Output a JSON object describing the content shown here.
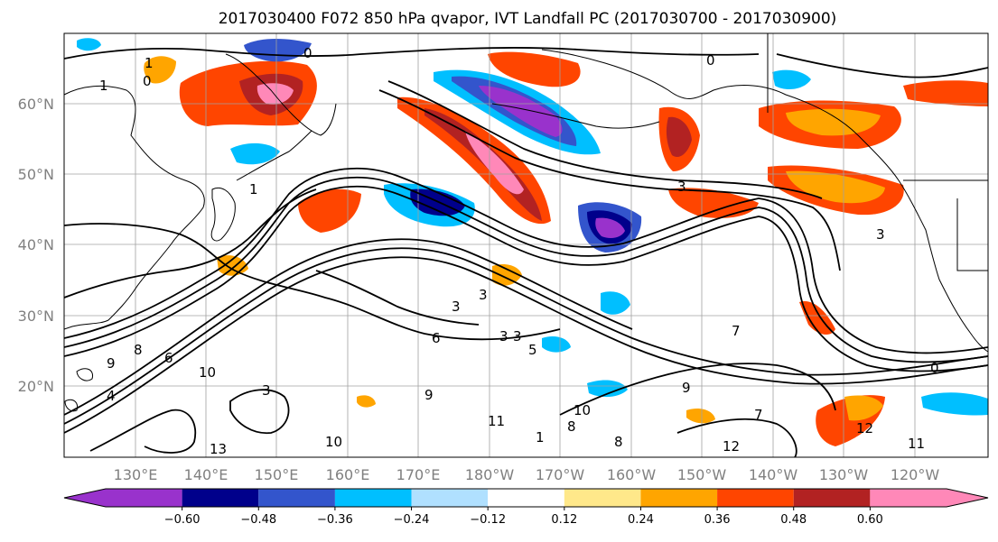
{
  "title": "2017030400 F072 850 hPa qvapor, IVT Landfall PC (2017030700 - 2017030900)",
  "lat_labels": [
    "60°N",
    "50°N",
    "40°N",
    "30°N",
    "20°N"
  ],
  "lon_labels": [
    "130°E",
    "140°E",
    "150°E",
    "160°E",
    "170°E",
    "180°W",
    "170°W",
    "160°W",
    "150°W",
    "140°W",
    "130°W",
    "120°W"
  ],
  "colorbar": {
    "colors": [
      "#9932CC",
      "#00008B",
      "#3355CC",
      "#00BFFF",
      "#B0E0FF",
      "#FFFFFF",
      "#FFE88A",
      "#FFA500",
      "#FF4500",
      "#B22222",
      "#FF88B8"
    ],
    "tick_labels": [
      "−0.60",
      "−0.48",
      "−0.36",
      "−0.24",
      "−0.12",
      "0.12",
      "0.24",
      "0.36",
      "0.48",
      "0.60"
    ]
  },
  "contour_labels": [
    "0",
    "0",
    "1",
    "1",
    "1",
    "0",
    "3",
    "3",
    "3",
    "3",
    "3",
    "3",
    "5",
    "6",
    "8",
    "9",
    "9",
    "9",
    "10",
    "10",
    "11",
    "11",
    "12",
    "12",
    "13",
    "8",
    "7",
    "7",
    "6",
    "4",
    "0",
    "1",
    "8",
    "3",
    "10"
  ]
}
